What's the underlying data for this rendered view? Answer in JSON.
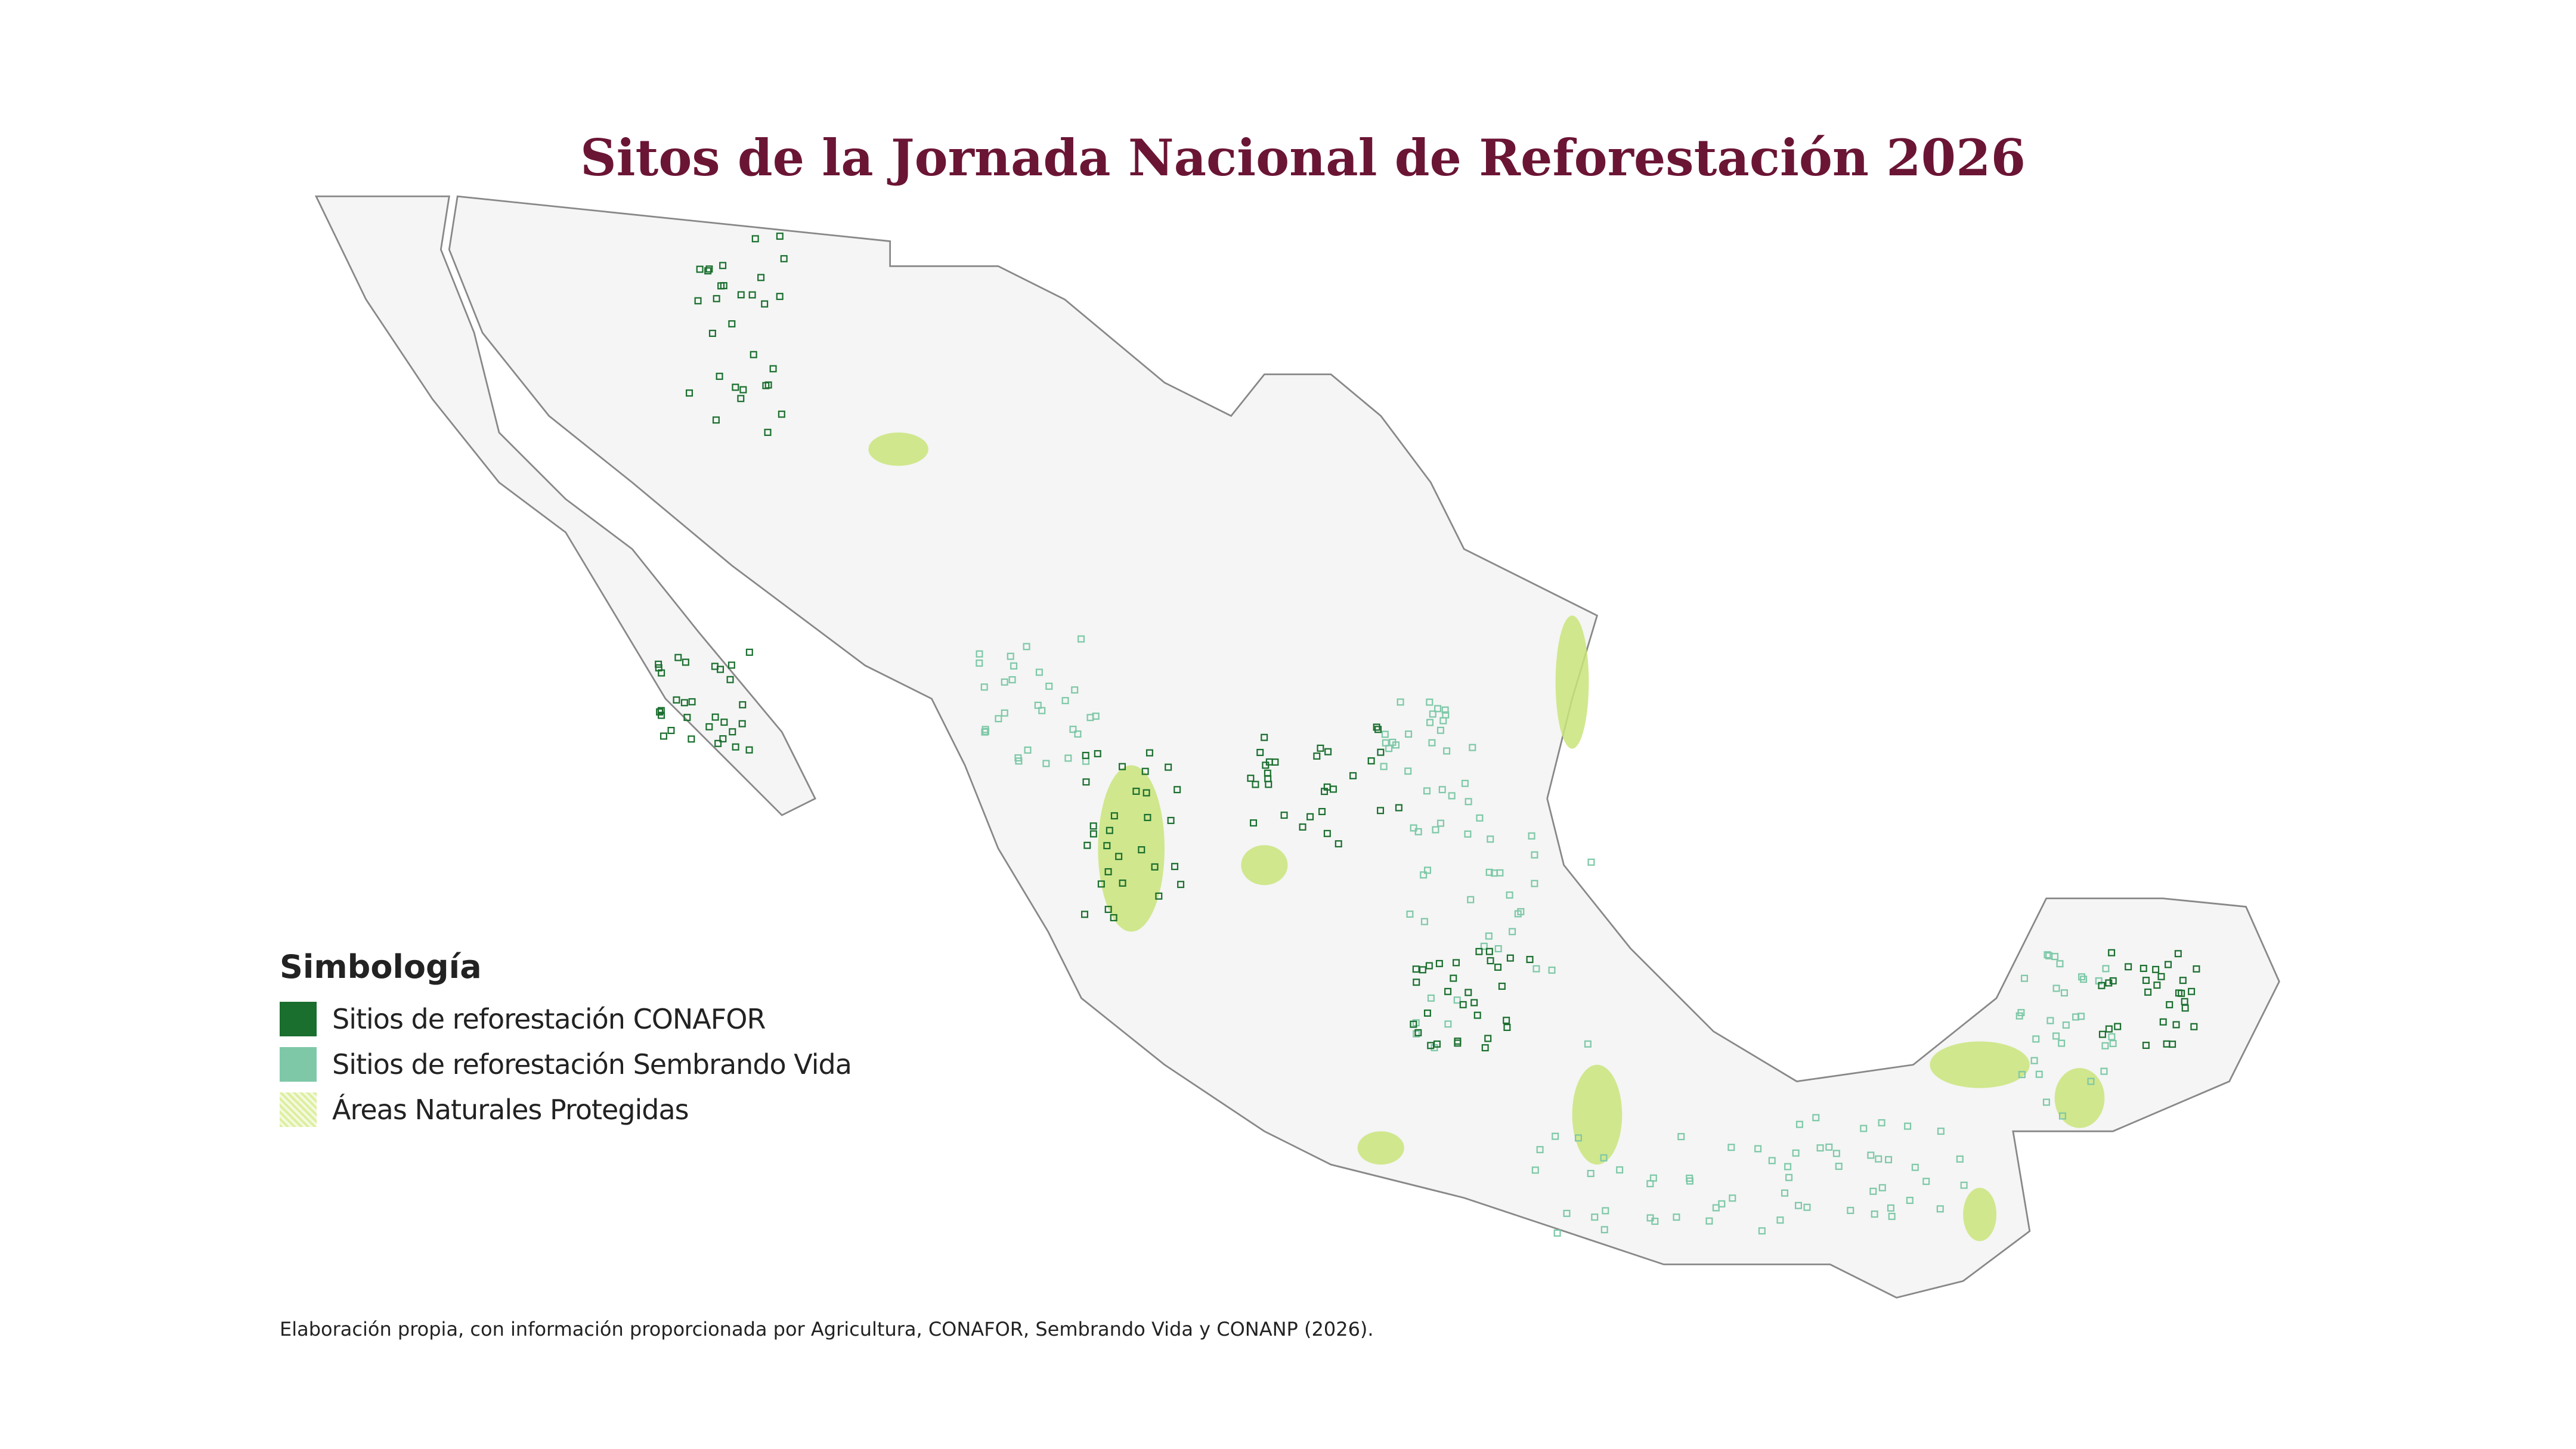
{
  "title": "Sitos de la Jornada Nacional de Reforestación 2026",
  "legend": {
    "title": "Simbología",
    "items": [
      "Sitios de reforestación CONAFOR",
      "Sitios de reforestación Sembrando Vida",
      "Áreas Naturales Protegidas"
    ]
  },
  "source": "Elaboración propia, con información proporcionada por Agricultura, CONAFOR, Sembrando Vida y CONANP (2026)."
}
